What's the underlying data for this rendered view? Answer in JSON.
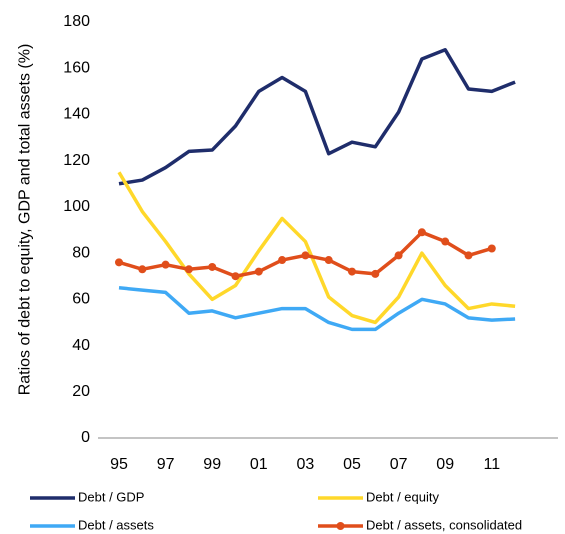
{
  "chart_data": {
    "type": "line",
    "y_label": "Ratios of debt to equity, GDP and total assets (%)",
    "categories": [
      "95",
      null,
      "97",
      null,
      "99",
      null,
      "01",
      null,
      "03",
      null,
      "05",
      null,
      "07",
      null,
      "09",
      null,
      "11",
      null
    ],
    "series": [
      {
        "name": "Debt / GDP",
        "color": "#1f2d6b",
        "markers": false,
        "values": [
          110,
          111.6,
          117,
          124,
          124.6,
          135,
          150,
          156,
          150,
          123,
          128,
          126,
          141,
          164,
          168,
          151,
          150,
          154
        ]
      },
      {
        "name": "Debt / equity",
        "color": "#ffd82a",
        "markers": false,
        "values": [
          115,
          98,
          85,
          71,
          60,
          66,
          81,
          95,
          85,
          61,
          53,
          50,
          61,
          80,
          66,
          56,
          58,
          57
        ]
      },
      {
        "name": "Debt / assets",
        "color": "#3fa9f5",
        "markers": false,
        "values": [
          65,
          64,
          63,
          54,
          55,
          52,
          54,
          56,
          56,
          50,
          47,
          47,
          54,
          60,
          58,
          52,
          51,
          51.5
        ]
      },
      {
        "name": "Debt / assets, consolidated",
        "color": "#e04e1b",
        "markers": true,
        "values": [
          76,
          73,
          75,
          73,
          74,
          70,
          72,
          77,
          79,
          77,
          72,
          71,
          79,
          89,
          85,
          79,
          82,
          null
        ]
      }
    ],
    "ylim": [
      0,
      180
    ],
    "yticks": [
      0,
      20,
      40,
      60,
      80,
      100,
      120,
      140,
      160,
      180
    ],
    "grid": false
  }
}
